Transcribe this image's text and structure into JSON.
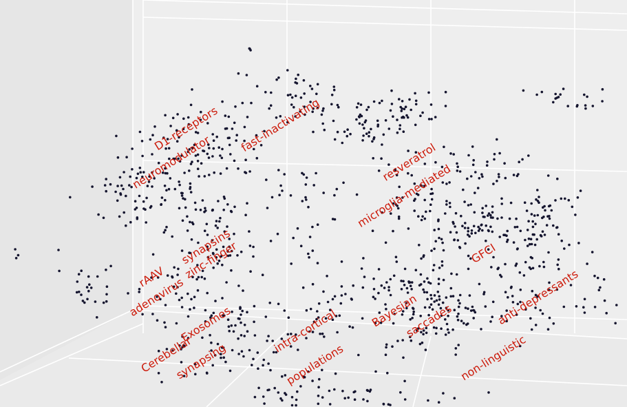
{
  "colors": {
    "back_wall": "#eeeeee",
    "left_wall": "#e6e6e6",
    "floor": "#eaeaea",
    "grid": "#ffffff",
    "point": "#14142e",
    "label": "#cc1a0a"
  },
  "chart_data": {
    "type": "scatter",
    "projection": "3d",
    "grid": true,
    "title": "",
    "xlabel": "",
    "ylabel": "",
    "zlabel": "",
    "annotations": [
      {
        "text": "D1-receptors",
        "x": 0.14,
        "y": 0.26,
        "angle": -32
      },
      {
        "text": "fast-inactivating",
        "x": 0.33,
        "y": 0.25,
        "angle": -32
      },
      {
        "text": "neuromodulator",
        "x": 0.11,
        "y": 0.36,
        "angle": -32
      },
      {
        "text": "resveratrol",
        "x": 0.59,
        "y": 0.36,
        "angle": -32
      },
      {
        "text": "microglia-mediated",
        "x": 0.58,
        "y": 0.46,
        "angle": -32
      },
      {
        "text": "synapsins",
        "x": 0.18,
        "y": 0.61,
        "angle": -32
      },
      {
        "text": "zinc-finger",
        "x": 0.19,
        "y": 0.65,
        "angle": -32
      },
      {
        "text": "rAAV",
        "x": 0.07,
        "y": 0.7,
        "angle": -32
      },
      {
        "text": "adenovirus",
        "x": 0.08,
        "y": 0.76,
        "angle": -32
      },
      {
        "text": "GFCI",
        "x": 0.74,
        "y": 0.63,
        "angle": -32
      },
      {
        "text": "anti-depressants",
        "x": 0.85,
        "y": 0.76,
        "angle": -32
      },
      {
        "text": "Bayesian",
        "x": 0.56,
        "y": 0.8,
        "angle": -32
      },
      {
        "text": "saccades",
        "x": 0.63,
        "y": 0.83,
        "angle": -32
      },
      {
        "text": "Exosomes",
        "x": 0.18,
        "y": 0.84,
        "angle": -32
      },
      {
        "text": "intra-cortical",
        "x": 0.38,
        "y": 0.86,
        "angle": -32
      },
      {
        "text": "Cerebellar",
        "x": 0.1,
        "y": 0.93,
        "angle": -32
      },
      {
        "text": "synapsing",
        "x": 0.17,
        "y": 0.95,
        "angle": -32
      },
      {
        "text": "populations",
        "x": 0.4,
        "y": 0.96,
        "angle": -32
      },
      {
        "text": "non-linguistic",
        "x": 0.76,
        "y": 0.94,
        "angle": -32
      }
    ],
    "clusters": [
      {
        "x": 0.17,
        "y": 0.3,
        "sx": 0.06,
        "sy": 0.06,
        "n": 95
      },
      {
        "x": 0.34,
        "y": 0.17,
        "sx": 0.05,
        "sy": 0.05,
        "n": 45
      },
      {
        "x": 0.5,
        "y": 0.25,
        "sx": 0.06,
        "sy": 0.05,
        "n": 60
      },
      {
        "x": 0.58,
        "y": 0.2,
        "sx": 0.03,
        "sy": 0.03,
        "n": 30
      },
      {
        "x": 0.05,
        "y": 0.45,
        "sx": 0.05,
        "sy": 0.05,
        "n": 70
      },
      {
        "x": 0.17,
        "y": 0.5,
        "sx": 0.05,
        "sy": 0.06,
        "n": 55
      },
      {
        "x": 0.23,
        "y": 0.63,
        "sx": 0.04,
        "sy": 0.04,
        "n": 30
      },
      {
        "x": 0.12,
        "y": 0.72,
        "sx": 0.05,
        "sy": 0.06,
        "n": 45
      },
      {
        "x": -0.05,
        "y": 0.72,
        "sx": 0.03,
        "sy": 0.04,
        "n": 25
      },
      {
        "x": 0.38,
        "y": 0.45,
        "sx": 0.05,
        "sy": 0.04,
        "n": 25
      },
      {
        "x": 0.4,
        "y": 0.6,
        "sx": 0.04,
        "sy": 0.04,
        "n": 15
      },
      {
        "x": 0.6,
        "y": 0.45,
        "sx": 0.05,
        "sy": 0.05,
        "n": 45
      },
      {
        "x": 0.73,
        "y": 0.38,
        "sx": 0.06,
        "sy": 0.04,
        "n": 40
      },
      {
        "x": 0.86,
        "y": 0.48,
        "sx": 0.04,
        "sy": 0.04,
        "n": 35
      },
      {
        "x": 0.72,
        "y": 0.55,
        "sx": 0.07,
        "sy": 0.05,
        "n": 90
      },
      {
        "x": 0.84,
        "y": 0.62,
        "sx": 0.05,
        "sy": 0.05,
        "n": 50
      },
      {
        "x": 0.57,
        "y": 0.73,
        "sx": 0.06,
        "sy": 0.06,
        "n": 95
      },
      {
        "x": 0.65,
        "y": 0.8,
        "sx": 0.04,
        "sy": 0.06,
        "n": 45
      },
      {
        "x": 0.73,
        "y": 0.8,
        "sx": 0.05,
        "sy": 0.05,
        "n": 30
      },
      {
        "x": 0.83,
        "y": 0.77,
        "sx": 0.04,
        "sy": 0.05,
        "n": 30
      },
      {
        "x": 0.96,
        "y": 0.77,
        "sx": 0.03,
        "sy": 0.04,
        "n": 15
      },
      {
        "x": 0.24,
        "y": 0.82,
        "sx": 0.04,
        "sy": 0.04,
        "n": 30
      },
      {
        "x": 0.17,
        "y": 0.92,
        "sx": 0.05,
        "sy": 0.04,
        "n": 35
      },
      {
        "x": 0.42,
        "y": 0.8,
        "sx": 0.05,
        "sy": 0.05,
        "n": 30
      },
      {
        "x": 0.32,
        "y": 0.9,
        "sx": 0.05,
        "sy": 0.04,
        "n": 20
      },
      {
        "x": 0.54,
        "y": 0.9,
        "sx": 0.03,
        "sy": 0.03,
        "n": 12
      },
      {
        "x": 0.36,
        "y": 1.04,
        "sx": 0.06,
        "sy": 0.04,
        "n": 45
      },
      {
        "x": 0.53,
        "y": 1.05,
        "sx": 0.08,
        "sy": 0.03,
        "n": 30
      },
      {
        "x": 0.9,
        "y": 0.17,
        "sx": 0.04,
        "sy": 0.02,
        "n": 20
      },
      {
        "x": 0.27,
        "y": 0.02,
        "sx": 0.003,
        "sy": 0.01,
        "n": 3
      },
      {
        "x": -0.2,
        "y": 0.62,
        "sx": 0.003,
        "sy": 0.01,
        "n": 3
      }
    ]
  }
}
